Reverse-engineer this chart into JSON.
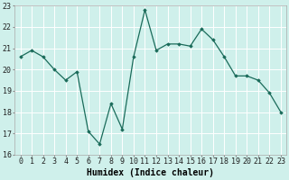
{
  "x": [
    0,
    1,
    2,
    3,
    4,
    5,
    6,
    7,
    8,
    9,
    10,
    11,
    12,
    13,
    14,
    15,
    16,
    17,
    18,
    19,
    20,
    21,
    22,
    23
  ],
  "y": [
    20.6,
    20.9,
    20.6,
    20.0,
    19.5,
    19.9,
    17.1,
    16.5,
    18.4,
    17.2,
    20.6,
    22.8,
    20.9,
    21.2,
    21.2,
    21.1,
    21.9,
    21.4,
    20.6,
    19.7,
    19.7,
    19.5,
    18.9,
    18.0
  ],
  "xlabel": "Humidex (Indice chaleur)",
  "ylim": [
    16,
    23
  ],
  "xlim": [
    -0.5,
    23.5
  ],
  "yticks": [
    16,
    17,
    18,
    19,
    20,
    21,
    22,
    23
  ],
  "xticks": [
    0,
    1,
    2,
    3,
    4,
    5,
    6,
    7,
    8,
    9,
    10,
    11,
    12,
    13,
    14,
    15,
    16,
    17,
    18,
    19,
    20,
    21,
    22,
    23
  ],
  "line_color": "#1a6b5a",
  "marker": "D",
  "marker_size": 1.8,
  "bg_color": "#cff0eb",
  "grid_color": "#ffffff",
  "xlabel_fontsize": 7,
  "tick_fontsize": 6,
  "linewidth": 0.9
}
